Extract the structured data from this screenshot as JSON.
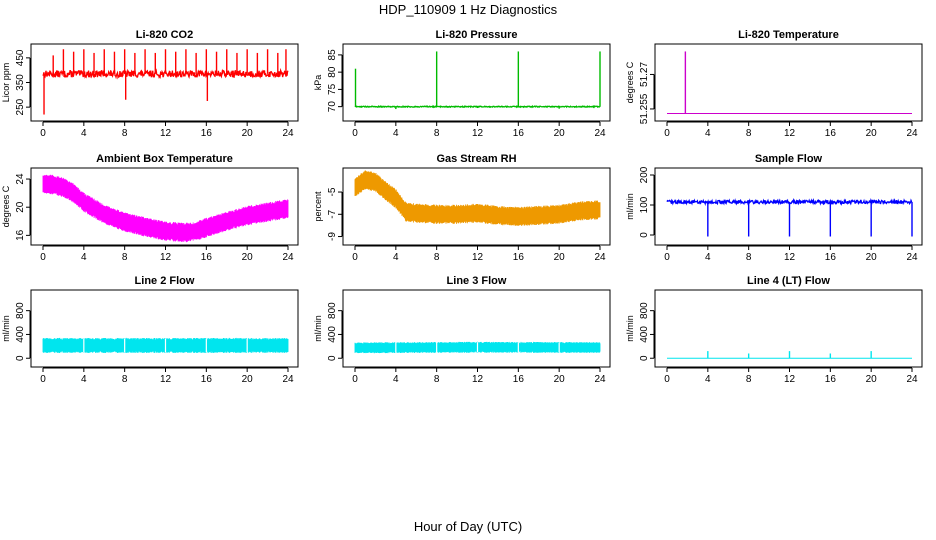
{
  "figure": {
    "title": "HDP_110909  1 Hz Diagnostics",
    "xlabel": "Hour of Day (UTC)"
  },
  "chart_data": [
    {
      "type": "line",
      "title": "Li-820 CO2",
      "ylabel": "Licor ppm",
      "color": "#ff0000",
      "xlim": [
        0,
        24
      ],
      "ylim": [
        210,
        490
      ],
      "xticks": [
        0,
        4,
        8,
        12,
        16,
        20,
        24
      ],
      "yticks": [
        250,
        350,
        450
      ],
      "series": [
        {
          "name": "CO2",
          "style": "noisy",
          "baseline": 385,
          "amp": 14,
          "spikes": [
            [
              0.1,
              220
            ],
            [
              1,
              460
            ],
            [
              2,
              485
            ],
            [
              3,
              475
            ],
            [
              4,
              485
            ],
            [
              5,
              470
            ],
            [
              6,
              485
            ],
            [
              7,
              475
            ],
            [
              8,
              485
            ],
            [
              8.1,
              280
            ],
            [
              9,
              470
            ],
            [
              10,
              485
            ],
            [
              11,
              470
            ],
            [
              12,
              485
            ],
            [
              13,
              475
            ],
            [
              14,
              485
            ],
            [
              15,
              470
            ],
            [
              16,
              485
            ],
            [
              16.1,
              275
            ],
            [
              17,
              475
            ],
            [
              18,
              485
            ],
            [
              19,
              470
            ],
            [
              20,
              485
            ],
            [
              21,
              470
            ],
            [
              22,
              485
            ],
            [
              23,
              470
            ],
            [
              23.8,
              485
            ]
          ]
        }
      ]
    },
    {
      "type": "line",
      "title": "Li-820 Pressure",
      "ylabel": "kPa",
      "color": "#00bb00",
      "xlim": [
        0,
        24
      ],
      "ylim": [
        67,
        87
      ],
      "xticks": [
        0,
        4,
        8,
        12,
        16,
        20,
        24
      ],
      "yticks": [
        70,
        75,
        80,
        85
      ],
      "series": [
        {
          "name": "Pressure",
          "style": "flat",
          "baseline": 70,
          "amp": 0.15,
          "spikes": [
            [
              0.05,
              81
            ],
            [
              4,
              69.3
            ],
            [
              8,
              86
            ],
            [
              12,
              69.6
            ],
            [
              16,
              86
            ],
            [
              20,
              69.4
            ],
            [
              24,
              86
            ]
          ]
        }
      ]
    },
    {
      "type": "line",
      "title": "Li-820 Temperature",
      "ylabel": "degrees C",
      "color": "#cc00cc",
      "xlim": [
        0,
        24
      ],
      "ylim": [
        51.2515,
        51.2815
      ],
      "xticks": [
        0,
        4,
        8,
        12,
        16,
        20,
        24
      ],
      "yticks": [
        51.255,
        51.27
      ],
      "series": [
        {
          "name": "Temperature",
          "style": "flat",
          "baseline": 51.253,
          "amp": 0,
          "spikes": [
            [
              1.8,
              51.28
            ]
          ]
        }
      ]
    },
    {
      "type": "line",
      "title": "Ambient Box Temperature",
      "ylabel": "degrees C",
      "color": "#ff00ff",
      "xlim": [
        0,
        24
      ],
      "ylim": [
        15.2,
        25
      ],
      "xticks": [
        0,
        4,
        8,
        12,
        16,
        20,
        24
      ],
      "yticks": [
        16,
        20,
        24
      ],
      "series": [
        {
          "name": "Ambient",
          "style": "band",
          "band": 2.4,
          "x": [
            0,
            1,
            2,
            3,
            4,
            6,
            8,
            10,
            12,
            14,
            15,
            16,
            18,
            20,
            22,
            24
          ],
          "values": [
            23.3,
            23.2,
            22.8,
            22,
            20.7,
            19,
            17.9,
            17.2,
            16.6,
            16.4,
            16.6,
            17.1,
            18,
            18.8,
            19.3,
            19.8
          ]
        }
      ]
    },
    {
      "type": "line",
      "title": "Gas Stream RH",
      "ylabel": "percent",
      "color": "#ee9900",
      "xlim": [
        0,
        24
      ],
      "ylim": [
        -9.4,
        -3.2
      ],
      "xticks": [
        0,
        4,
        8,
        12,
        16,
        20,
        24
      ],
      "yticks": [
        -9,
        -7,
        -5
      ],
      "series": [
        {
          "name": "RH",
          "style": "band",
          "band": 1.5,
          "x": [
            0,
            1,
            2,
            3,
            4,
            5,
            6,
            8,
            10,
            12,
            14,
            16,
            18,
            20,
            22,
            24
          ],
          "values": [
            -4.6,
            -3.9,
            -4.1,
            -4.9,
            -5.6,
            -6.8,
            -6.9,
            -7,
            -7,
            -6.9,
            -7.1,
            -7.2,
            -7.1,
            -7,
            -6.7,
            -6.6
          ]
        }
      ]
    },
    {
      "type": "line",
      "title": "Sample Flow",
      "ylabel": "ml/min",
      "color": "#0000ff",
      "xlim": [
        0,
        24
      ],
      "ylim": [
        -20,
        210
      ],
      "xticks": [
        0,
        4,
        8,
        12,
        16,
        20,
        24
      ],
      "yticks": [
        0,
        100,
        200
      ],
      "series": [
        {
          "name": "Sample",
          "style": "noisy",
          "baseline": 110,
          "amp": 6,
          "spikes": [
            [
              4,
              -5
            ],
            [
              8,
              -5
            ],
            [
              12,
              -5
            ],
            [
              16,
              -5
            ],
            [
              20,
              -5
            ],
            [
              24,
              -5
            ]
          ]
        }
      ]
    },
    {
      "type": "line",
      "title": "Line 2 Flow",
      "ylabel": "ml/min",
      "color": "#00e5ee",
      "xlim": [
        0,
        24
      ],
      "ylim": [
        -80,
        1080
      ],
      "xticks": [
        0,
        4,
        8,
        12,
        16,
        20,
        24
      ],
      "yticks": [
        0,
        400,
        800
      ],
      "series": [
        {
          "name": "Line2",
          "style": "band",
          "band": 220,
          "gaps": [
            4,
            8,
            12,
            16,
            20
          ],
          "x": [
            0,
            24
          ],
          "values": [
            215,
            215
          ]
        }
      ]
    },
    {
      "type": "line",
      "title": "Line 3 Flow",
      "ylabel": "ml/min",
      "color": "#00e5ee",
      "xlim": [
        0,
        24
      ],
      "ylim": [
        -80,
        1080
      ],
      "xticks": [
        0,
        4,
        8,
        12,
        16,
        20,
        24
      ],
      "yticks": [
        0,
        400,
        800
      ],
      "series": [
        {
          "name": "Line3",
          "style": "band",
          "band": 160,
          "gaps": [
            4,
            8,
            12,
            16,
            20
          ],
          "x": [
            0,
            12,
            24
          ],
          "values": [
            175,
            185,
            180
          ]
        }
      ]
    },
    {
      "type": "line",
      "title": "Line 4 (LT) Flow",
      "ylabel": "ml/min",
      "color": "#00e5ee",
      "xlim": [
        0,
        24
      ],
      "ylim": [
        -80,
        1080
      ],
      "xticks": [
        0,
        4,
        8,
        12,
        16,
        20,
        24
      ],
      "yticks": [
        0,
        400,
        800
      ],
      "series": [
        {
          "name": "Line4",
          "style": "flat",
          "baseline": 0,
          "amp": 0,
          "spikes": [
            [
              4,
              120
            ],
            [
              8,
              80
            ],
            [
              12,
              120
            ],
            [
              16,
              80
            ],
            [
              20,
              120
            ]
          ]
        }
      ]
    }
  ]
}
